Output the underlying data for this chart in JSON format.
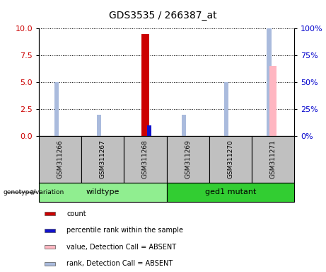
{
  "title": "GDS3535 / 266387_at",
  "samples": [
    "GSM311266",
    "GSM311267",
    "GSM311268",
    "GSM311269",
    "GSM311270",
    "GSM311271"
  ],
  "group_info": [
    {
      "label": "wildtype",
      "start": 0,
      "end": 2,
      "color": "#90EE90"
    },
    {
      "label": "ged1 mutant",
      "start": 3,
      "end": 5,
      "color": "#32CD32"
    }
  ],
  "count_values": [
    0.0,
    0.0,
    9.5,
    0.0,
    0.0,
    0.0
  ],
  "percentile_values": [
    0.0,
    0.0,
    1.0,
    0.0,
    0.0,
    0.0
  ],
  "absent_value_values": [
    0.0,
    0.0,
    0.0,
    0.0,
    0.0,
    65.0
  ],
  "absent_rank_values": [
    5.0,
    2.0,
    0.0,
    2.0,
    5.0,
    17.0
  ],
  "left_ylim": [
    0,
    10
  ],
  "right_ylim": [
    0,
    100
  ],
  "left_yticks": [
    0,
    2.5,
    5,
    7.5,
    10
  ],
  "right_yticks": [
    0,
    25,
    50,
    75,
    100
  ],
  "count_color": "#CC0000",
  "percentile_color": "#1111CC",
  "absent_value_color": "#FFB6C1",
  "absent_rank_color": "#AABBDD",
  "bg_color": "#FFFFFF",
  "sample_bg_color": "#C0C0C0",
  "label_color_left": "#CC0000",
  "label_color_right": "#0000CC",
  "legend_items": [
    {
      "label": "count",
      "color": "#CC0000"
    },
    {
      "label": "percentile rank within the sample",
      "color": "#1111CC"
    },
    {
      "label": "value, Detection Call = ABSENT",
      "color": "#FFB6C1"
    },
    {
      "label": "rank, Detection Call = ABSENT",
      "color": "#AABBDD"
    }
  ]
}
